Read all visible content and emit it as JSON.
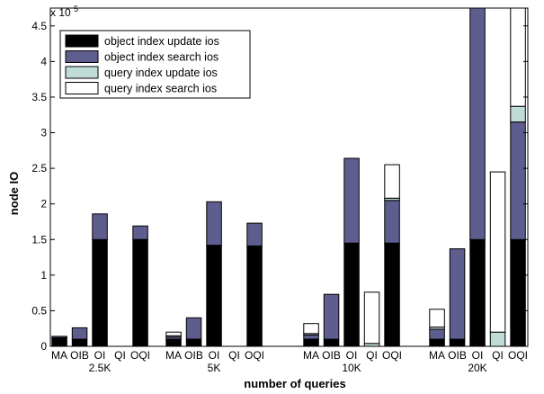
{
  "chart_data": {
    "type": "bar",
    "stacked": true,
    "xlabel": "number of queries",
    "ylabel": "node IO",
    "y_multiplier_label": "x 10",
    "y_multiplier_exp": "5",
    "ylim": [
      0,
      4.75
    ],
    "yticks": [
      0,
      0.5,
      1,
      1.5,
      2,
      2.5,
      3,
      3.5,
      4,
      4.5
    ],
    "ytick_labels": [
      "0",
      "0.5",
      "1",
      "1.5",
      "2",
      "2.5",
      "3",
      "3.5",
      "4",
      "4.5"
    ],
    "grid": false,
    "legend_position": "top-left",
    "groups": [
      "2.5K",
      "5K",
      "10K",
      "20K"
    ],
    "methods": [
      "MA",
      "OIB",
      "OI",
      "QI",
      "OQI"
    ],
    "series": [
      {
        "name": "object index update ios",
        "color": "#000000",
        "values": [
          [
            0.12,
            0.1,
            1.5,
            0,
            1.5
          ],
          [
            0.1,
            0.1,
            1.42,
            0,
            1.41
          ],
          [
            0.1,
            0.1,
            1.45,
            0,
            1.45
          ],
          [
            0.1,
            0.1,
            1.5,
            0,
            1.5
          ]
        ]
      },
      {
        "name": "object index search ios",
        "color": "#5e5e8e",
        "values": [
          [
            0.02,
            0.16,
            0.36,
            0,
            0.19
          ],
          [
            0.03,
            0.3,
            0.61,
            0,
            0.32
          ],
          [
            0.06,
            0.63,
            1.19,
            0,
            0.6
          ],
          [
            0.14,
            1.27,
            3.25,
            0,
            1.65
          ]
        ]
      },
      {
        "name": "query index update ios",
        "color": "#bfdcd6",
        "values": [
          [
            0,
            0,
            0,
            0,
            0
          ],
          [
            0.02,
            0,
            0,
            0,
            0
          ],
          [
            0.02,
            0,
            0,
            0.04,
            0.03
          ],
          [
            0.03,
            0,
            0,
            0.2,
            0.22
          ]
        ]
      },
      {
        "name": "query index search ios",
        "color": "#ffffff",
        "values": [
          [
            0,
            0,
            0,
            0,
            0
          ],
          [
            0.05,
            0,
            0,
            0,
            0
          ],
          [
            0.14,
            0,
            0,
            0.72,
            0.47
          ],
          [
            0.25,
            0,
            0,
            2.25,
            1.4
          ]
        ]
      }
    ]
  }
}
